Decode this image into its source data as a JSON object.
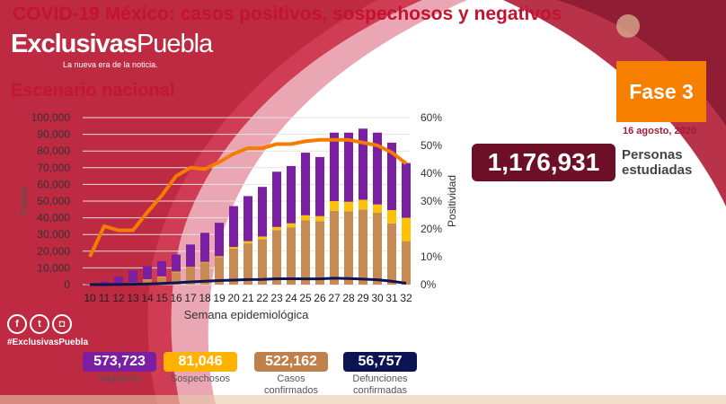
{
  "header": {
    "title": "COVID-19 México: casos positivos, sospechosos y negativos",
    "subtitle": "Escenario nacional",
    "watermark": "ExclusivasPuebla",
    "watermark_a": "Exclusivas",
    "watermark_b": "Puebla",
    "tagline": "La nueva era de la noticia.",
    "logo": "SALUD",
    "hashtag": "#ExclusivasPuebla"
  },
  "phase": {
    "label": "Fase 3",
    "date": "16 agosto, 2020"
  },
  "total": {
    "value": "1,176,931",
    "label_line1": "Personas",
    "label_line2": "estudiadas"
  },
  "stats": [
    {
      "value": "573,723",
      "label": "Negativos",
      "color": "#7b1fa2"
    },
    {
      "value": "81,046",
      "label": "Sospechosos",
      "color": "#ffb300"
    },
    {
      "value": "522,162",
      "label": "Casos confirmados",
      "color": "#c0804a"
    },
    {
      "value": "56,757",
      "label": "Defunciones confirmadas",
      "color": "#0d1452"
    }
  ],
  "colors": {
    "negativos": "#7b1fa2",
    "sospechosos": "#ffc107",
    "confirmados": "#c68a52",
    "defunciones": "#0d1452",
    "positividad": "#f57c00",
    "accent": "#c4122f"
  },
  "chart_data": {
    "type": "bar",
    "stacked": true,
    "xlabel": "Semana epidemiológica",
    "ylabel": "Casos",
    "y2label": "Positividad",
    "ylim": [
      0,
      100000
    ],
    "y2lim": [
      0,
      60
    ],
    "yticks": [
      "0",
      "10,000",
      "20,000",
      "30,000",
      "40,000",
      "50,000",
      "60,000",
      "70,000",
      "80,000",
      "90,000",
      "100,000"
    ],
    "y2ticks": [
      "0%",
      "10%",
      "20%",
      "30%",
      "40%",
      "50%",
      "60%"
    ],
    "categories": [
      "10",
      "11",
      "12",
      "13",
      "14",
      "15",
      "16",
      "17",
      "18",
      "19",
      "20",
      "21",
      "22",
      "23",
      "24",
      "25",
      "26",
      "27",
      "28",
      "29",
      "30",
      "31",
      "32"
    ],
    "series": [
      {
        "name": "Casos confirmados",
        "values": [
          100,
          300,
          500,
          1000,
          2900,
          4500,
          7300,
          10200,
          13200,
          16500,
          21600,
          24700,
          27200,
          32600,
          34300,
          38600,
          37900,
          44200,
          43800,
          45000,
          43000,
          36700,
          26000
        ]
      },
      {
        "name": "Sospechosos",
        "values": [
          0,
          50,
          100,
          200,
          300,
          400,
          500,
          400,
          400,
          500,
          900,
          1300,
          1600,
          1900,
          2400,
          2900,
          3100,
          5800,
          5800,
          5800,
          5000,
          7900,
          14000
        ]
      },
      {
        "name": "Negativos",
        "values": [
          200,
          1400,
          4100,
          7200,
          7800,
          9100,
          10200,
          13400,
          17400,
          20000,
          24500,
          27000,
          29700,
          33100,
          34300,
          37500,
          35400,
          41000,
          41400,
          42600,
          43000,
          40400,
          32800
        ]
      },
      {
        "name": "Defunciones",
        "type": "line",
        "values": [
          0,
          0,
          100,
          200,
          400,
          700,
          1100,
          1600,
          2000,
          2400,
          2700,
          3000,
          3100,
          3500,
          3500,
          3400,
          3400,
          3800,
          3600,
          3300,
          2900,
          2000,
          800
        ]
      },
      {
        "name": "Positividad",
        "type": "line",
        "axis": "right",
        "values": [
          10,
          21,
          19.5,
          19.5,
          26,
          32,
          39,
          42,
          41.5,
          44,
          47,
          49,
          49,
          50.5,
          50.5,
          51.5,
          52,
          52,
          52,
          51,
          50,
          47.5,
          43.5
        ]
      }
    ]
  }
}
